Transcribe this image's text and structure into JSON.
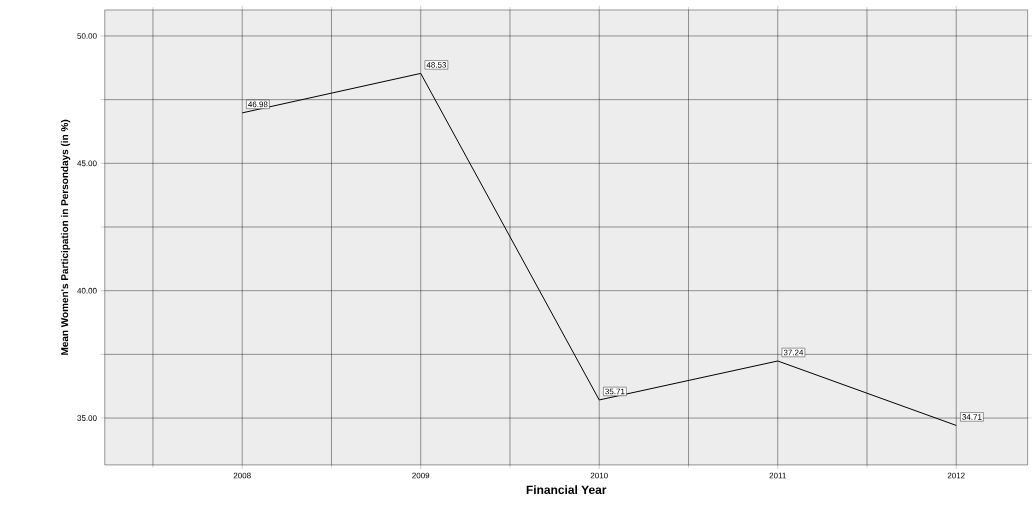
{
  "chart_data": {
    "type": "line",
    "xlabel": "Financial Year",
    "ylabel": "Mean Women's Participation in Persondays (in %)",
    "categories": [
      "2008",
      "2009",
      "2010",
      "2011",
      "2012"
    ],
    "values": [
      46.98,
      48.53,
      35.71,
      37.24,
      34.71
    ],
    "color": "#000000",
    "ylim": [
      33.16,
      51.02
    ],
    "yticks": [
      {
        "value": 35,
        "label": "35.00"
      },
      {
        "value": 37.5,
        "label": null
      },
      {
        "value": 40,
        "label": "40.00"
      },
      {
        "value": 42.5,
        "label": null
      },
      {
        "value": 45,
        "label": "45.00"
      },
      {
        "value": 47.5,
        "label": null
      },
      {
        "value": 50,
        "label": "50.00"
      }
    ],
    "grid": true,
    "data_labels": true
  }
}
